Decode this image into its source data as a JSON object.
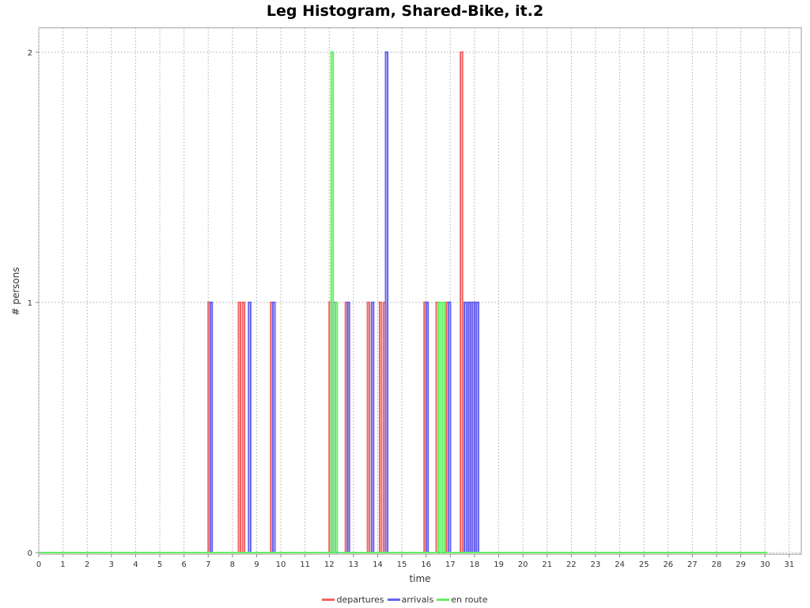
{
  "chart_data": {
    "type": "line",
    "title": "Leg Histogram, Shared-Bike, it.2",
    "xlabel": "time",
    "ylabel": "# persons",
    "xlim": [
      0,
      31.5
    ],
    "ylim": [
      0,
      2.1
    ],
    "x_ticks": [
      "0",
      "1",
      "2",
      "3",
      "4",
      "5",
      "6",
      "7",
      "8",
      "9",
      "10",
      "11",
      "12",
      "13",
      "14",
      "15",
      "16",
      "17",
      "18",
      "19",
      "20",
      "21",
      "22",
      "23",
      "24",
      "25",
      "26",
      "27",
      "28",
      "29",
      "30",
      "31"
    ],
    "y_ticks": [
      "0",
      "1",
      "2"
    ],
    "grid": true,
    "legend_position": "bottom",
    "bin_width": 0.0833,
    "series": [
      {
        "name": "departures",
        "color": "#f06464",
        "x_start": 0,
        "x_end": 30.08,
        "bins": [
          {
            "x": 7.0,
            "y": 1
          },
          {
            "x": 8.25,
            "y": 1
          },
          {
            "x": 8.42,
            "y": 1
          },
          {
            "x": 9.58,
            "y": 1
          },
          {
            "x": 12.0,
            "y": 1
          },
          {
            "x": 12.67,
            "y": 1
          },
          {
            "x": 13.58,
            "y": 1
          },
          {
            "x": 14.08,
            "y": 1
          },
          {
            "x": 14.25,
            "y": 1
          },
          {
            "x": 15.92,
            "y": 1
          },
          {
            "x": 16.42,
            "y": 1
          },
          {
            "x": 16.83,
            "y": 1
          },
          {
            "x": 17.42,
            "y": 2
          },
          {
            "x": 17.67,
            "y": 1
          },
          {
            "x": 17.83,
            "y": 1
          },
          {
            "x": 18.0,
            "y": 1
          }
        ]
      },
      {
        "name": "arrivals",
        "color": "#6464f0",
        "x_start": 0,
        "x_end": 30.08,
        "bins": [
          {
            "x": 7.08,
            "y": 1
          },
          {
            "x": 8.67,
            "y": 1
          },
          {
            "x": 9.67,
            "y": 1
          },
          {
            "x": 12.17,
            "y": 1
          },
          {
            "x": 12.75,
            "y": 1
          },
          {
            "x": 13.75,
            "y": 1
          },
          {
            "x": 14.33,
            "y": 2
          },
          {
            "x": 16.0,
            "y": 1
          },
          {
            "x": 16.92,
            "y": 1
          },
          {
            "x": 17.58,
            "y": 1
          },
          {
            "x": 17.75,
            "y": 1
          },
          {
            "x": 17.92,
            "y": 1
          },
          {
            "x": 18.08,
            "y": 1
          }
        ]
      },
      {
        "name": "en route",
        "color": "#64f064",
        "x_start": 0,
        "x_end": 30.08,
        "bins": [
          {
            "x": 12.08,
            "y": 2
          },
          {
            "x": 12.25,
            "y": 1
          },
          {
            "x": 16.5,
            "y": 1
          },
          {
            "x": 16.67,
            "y": 1
          }
        ]
      }
    ]
  }
}
